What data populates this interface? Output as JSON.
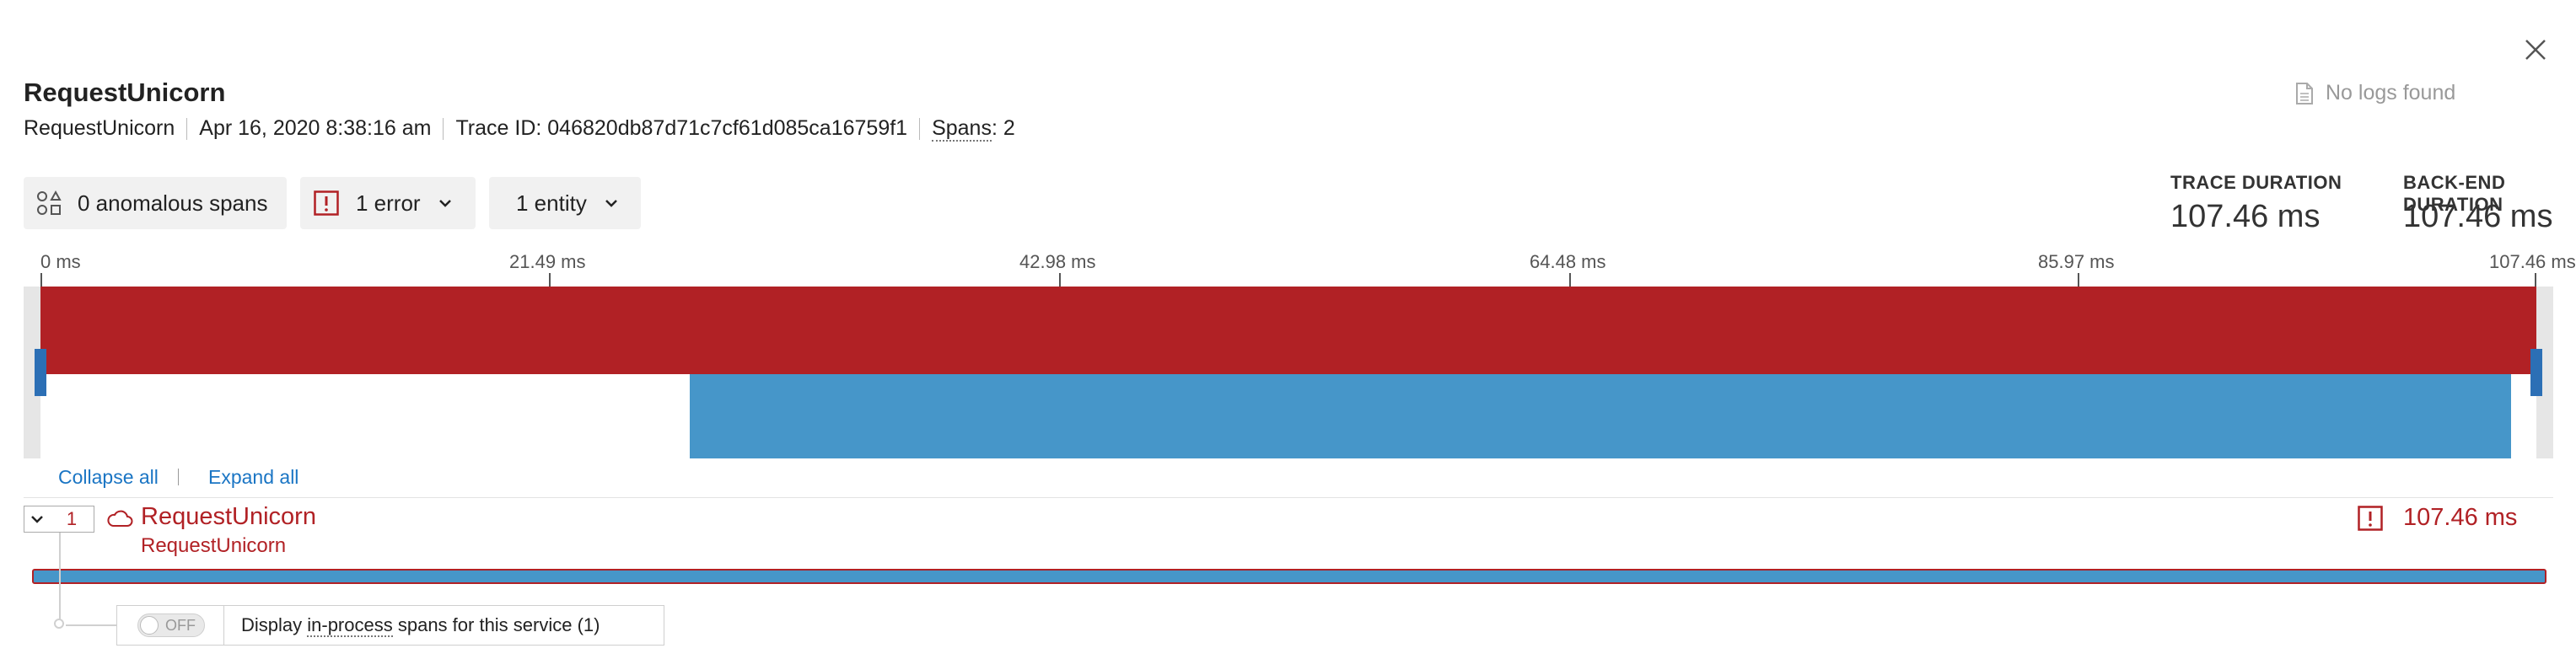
{
  "header": {
    "title": "RequestUnicorn",
    "meta": {
      "service": "RequestUnicorn",
      "timestamp": "Apr 16, 2020 8:38:16 am",
      "trace_id": "Trace ID: 046820db87d71c7cf61d085ca16759f1",
      "spans_label": "Spans",
      "spans_value": ": 2"
    },
    "no_logs": "No logs found",
    "icons": {
      "close": "close-icon",
      "logs": "document-icon"
    }
  },
  "filters": {
    "anomalous": "0 anomalous spans",
    "errors": "1 error",
    "entities": "1 entity"
  },
  "durations": {
    "trace_label": "TRACE DURATION",
    "trace_value": "107.46 ms",
    "backend_label": "BACK-END DURATION",
    "backend_value": "107.46 ms"
  },
  "timeline": {
    "ticks": [
      "0 ms",
      "21.49 ms",
      "42.98 ms",
      "64.48 ms",
      "85.97 ms",
      "107.46 ms"
    ],
    "colors": {
      "error": "#b12125",
      "span": "#4696c9",
      "handle": "#2c6fb5"
    }
  },
  "controls": {
    "collapse_all": "Collapse all",
    "expand_all": "Expand all"
  },
  "span": {
    "count": "1",
    "name": "RequestUnicorn",
    "entity": "RequestUnicorn",
    "duration": "107.46 ms"
  },
  "in_process": {
    "toggle_label": "OFF",
    "text_before": "Display ",
    "text_link": "in-process",
    "text_after": " spans for this service (1)"
  }
}
